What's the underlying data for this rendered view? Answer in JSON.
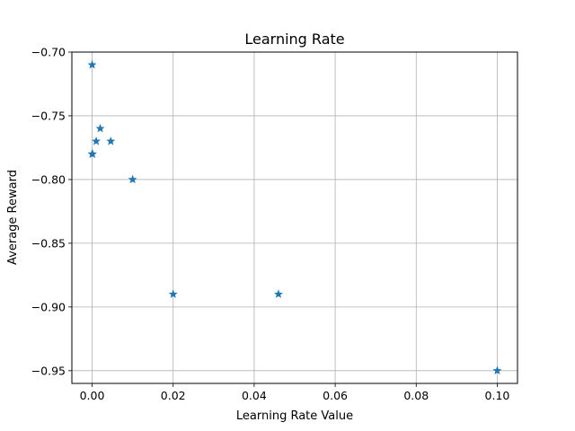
{
  "chart_data": {
    "type": "scatter",
    "title": "Learning Rate",
    "xlabel": "Learning Rate Value",
    "ylabel": "Average Reward",
    "xlim": [
      -0.005,
      0.105
    ],
    "ylim": [
      -0.96,
      -0.7
    ],
    "x_ticks": [
      0.0,
      0.02,
      0.04,
      0.06,
      0.08,
      0.1
    ],
    "x_tick_labels": [
      "0.00",
      "0.02",
      "0.04",
      "0.06",
      "0.08",
      "0.10"
    ],
    "y_ticks": [
      -0.7,
      -0.75,
      -0.8,
      -0.85,
      -0.9,
      -0.95
    ],
    "y_tick_labels": [
      "−0.70",
      "−0.75",
      "−0.80",
      "−0.85",
      "−0.90",
      "−0.95"
    ],
    "grid": true,
    "marker": "star",
    "color": "#1f77b4",
    "points": [
      {
        "x": 0.0,
        "y": -0.71
      },
      {
        "x": 0.0,
        "y": -0.78
      },
      {
        "x": 0.0001,
        "y": -0.78
      },
      {
        "x": 0.001,
        "y": -0.77
      },
      {
        "x": 0.002,
        "y": -0.76
      },
      {
        "x": 0.0046,
        "y": -0.77
      },
      {
        "x": 0.01,
        "y": -0.8
      },
      {
        "x": 0.02,
        "y": -0.89
      },
      {
        "x": 0.046,
        "y": -0.89
      },
      {
        "x": 0.1,
        "y": -0.95
      }
    ]
  }
}
